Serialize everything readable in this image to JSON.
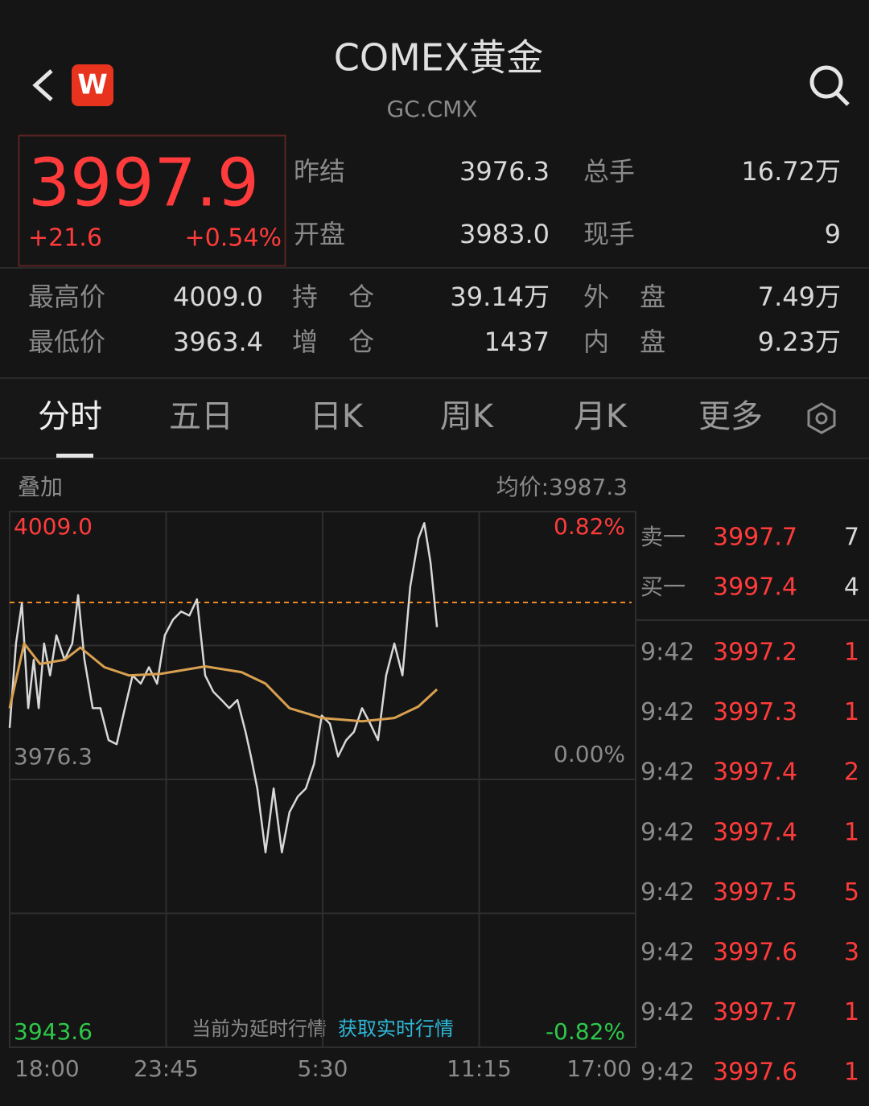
{
  "header": {
    "logo": "W",
    "title": "COMEX黄金",
    "code": "GC.CMX"
  },
  "quote": {
    "price": 3997.9,
    "change": "+21.6",
    "change_pct": "+0.54%"
  },
  "stats": {
    "top": [
      [
        {
          "label": "昨结",
          "value": "3976.3"
        },
        {
          "label": "总手",
          "value": "16.72万"
        }
      ],
      [
        {
          "label": "开盘",
          "value": "3983.0"
        },
        {
          "label": "现手",
          "value": "9"
        }
      ]
    ],
    "bottom": [
      [
        {
          "label": "最高价",
          "value": "4009.0"
        },
        {
          "label": "持 仓",
          "value": "39.14万"
        },
        {
          "label": "外 盘",
          "value": "7.49万"
        }
      ],
      [
        {
          "label": "最低价",
          "value": "3963.4"
        },
        {
          "label": "增 仓",
          "value": "1437"
        },
        {
          "label": "内 盘",
          "value": "9.23万"
        }
      ]
    ]
  },
  "tabs": [
    "分时",
    "五日",
    "日K",
    "周K",
    "月K",
    "更多"
  ],
  "overlay": "叠加",
  "average": "均价:3987.3",
  "notice": {
    "text": "当前为延时行情",
    "link": "获取实时行情"
  },
  "chart_data": {
    "type": "line",
    "xlim": [
      0,
      1380
    ],
    "xticks": [
      {
        "value": 0,
        "label": "18:00"
      },
      {
        "value": 345,
        "label": "23:45"
      },
      {
        "value": 690,
        "label": "5:30"
      },
      {
        "value": 1035,
        "label": "11:15"
      },
      {
        "value": 1380,
        "label": "17:00"
      }
    ],
    "ylim": [
      3943.6,
      4009
    ],
    "yticks": [
      {
        "value": 4009,
        "label": "4009.0"
      },
      3976.3,
      3943.6
    ],
    "y2lim": [
      -0.82,
      0.82
    ],
    "y2ticks": [
      {
        "value": 0.82,
        "label": "0.82%"
      },
      {
        "value": 0,
        "label": "0.00%"
      },
      {
        "value": -0.82,
        "label": "-0.82%"
      }
    ],
    "reference_color": "#f08a24",
    "series": [
      {
        "color": "#d8d8d8",
        "x": [
          0,
          14,
          27,
          41,
          53,
          64,
          76,
          89,
          103,
          121,
          138,
          151,
          165,
          183,
          200,
          218,
          236,
          254,
          271,
          289,
          307,
          325,
          342,
          360,
          378,
          396,
          413,
          431,
          449,
          467,
          484,
          502,
          520,
          532,
          546,
          564,
          582,
          600,
          617,
          635,
          653,
          671,
          688,
          706,
          724,
          742,
          759,
          777,
          795,
          812,
          830,
          848,
          866,
          883,
          901,
          914,
          928,
          942
        ],
        "values": [
          3982.6,
          3992.9,
          3997.8,
          3985.0,
          3990.9,
          3985.0,
          3992.9,
          3989.0,
          3993.9,
          3990.9,
          3992.9,
          3998.8,
          3990.9,
          3985.0,
          3985.0,
          3981.1,
          3980.6,
          3985.0,
          3989.0,
          3988.0,
          3990.0,
          3988.0,
          3993.9,
          3995.8,
          3996.8,
          3996.3,
          3998.3,
          3989.0,
          3987.0,
          3986.0,
          3985.0,
          3986.0,
          3982.1,
          3979.1,
          3975.2,
          3967.4,
          3975.2,
          3967.4,
          3972.3,
          3974.2,
          3975.2,
          3978.2,
          3984.1,
          3983.1,
          3979.1,
          3981.1,
          3982.1,
          3985.0,
          3983.1,
          3981.1,
          3989.0,
          3992.9,
          3989.0,
          3999.8,
          4005.7,
          4007.6,
          4002.7,
          3994.9
        ]
      },
      {
        "color": "#d9a050",
        "x": [
          0,
          32,
          67,
          121,
          156,
          209,
          263,
          334,
          431,
          511,
          564,
          617,
          688,
          777,
          848,
          901,
          942
        ],
        "values": [
          3985.0,
          3992.9,
          3990.4,
          3990.9,
          3992.4,
          3990.0,
          3989.0,
          3989.2,
          3990.1,
          3989.4,
          3988.0,
          3985.0,
          3983.8,
          3983.4,
          3983.8,
          3985.2,
          3987.3
        ]
      }
    ]
  },
  "order_book": [
    {
      "label": "卖一",
      "price": 3997.7,
      "volume": 7
    },
    {
      "label": "买一",
      "price": 3997.4,
      "volume": 4
    }
  ],
  "trades": [
    {
      "time": "9:42",
      "price": 3997.2,
      "volume": 1
    },
    {
      "time": "9:42",
      "price": 3997.3,
      "volume": 1
    },
    {
      "time": "9:42",
      "price": 3997.4,
      "volume": 2
    },
    {
      "time": "9:42",
      "price": 3997.4,
      "volume": 1
    },
    {
      "time": "9:42",
      "price": 3997.5,
      "volume": 5
    },
    {
      "time": "9:42",
      "price": 3997.6,
      "volume": 3
    },
    {
      "time": "9:42",
      "price": 3997.7,
      "volume": 1
    },
    {
      "time": "9:42",
      "price": 3997.6,
      "volume": 1
    }
  ]
}
